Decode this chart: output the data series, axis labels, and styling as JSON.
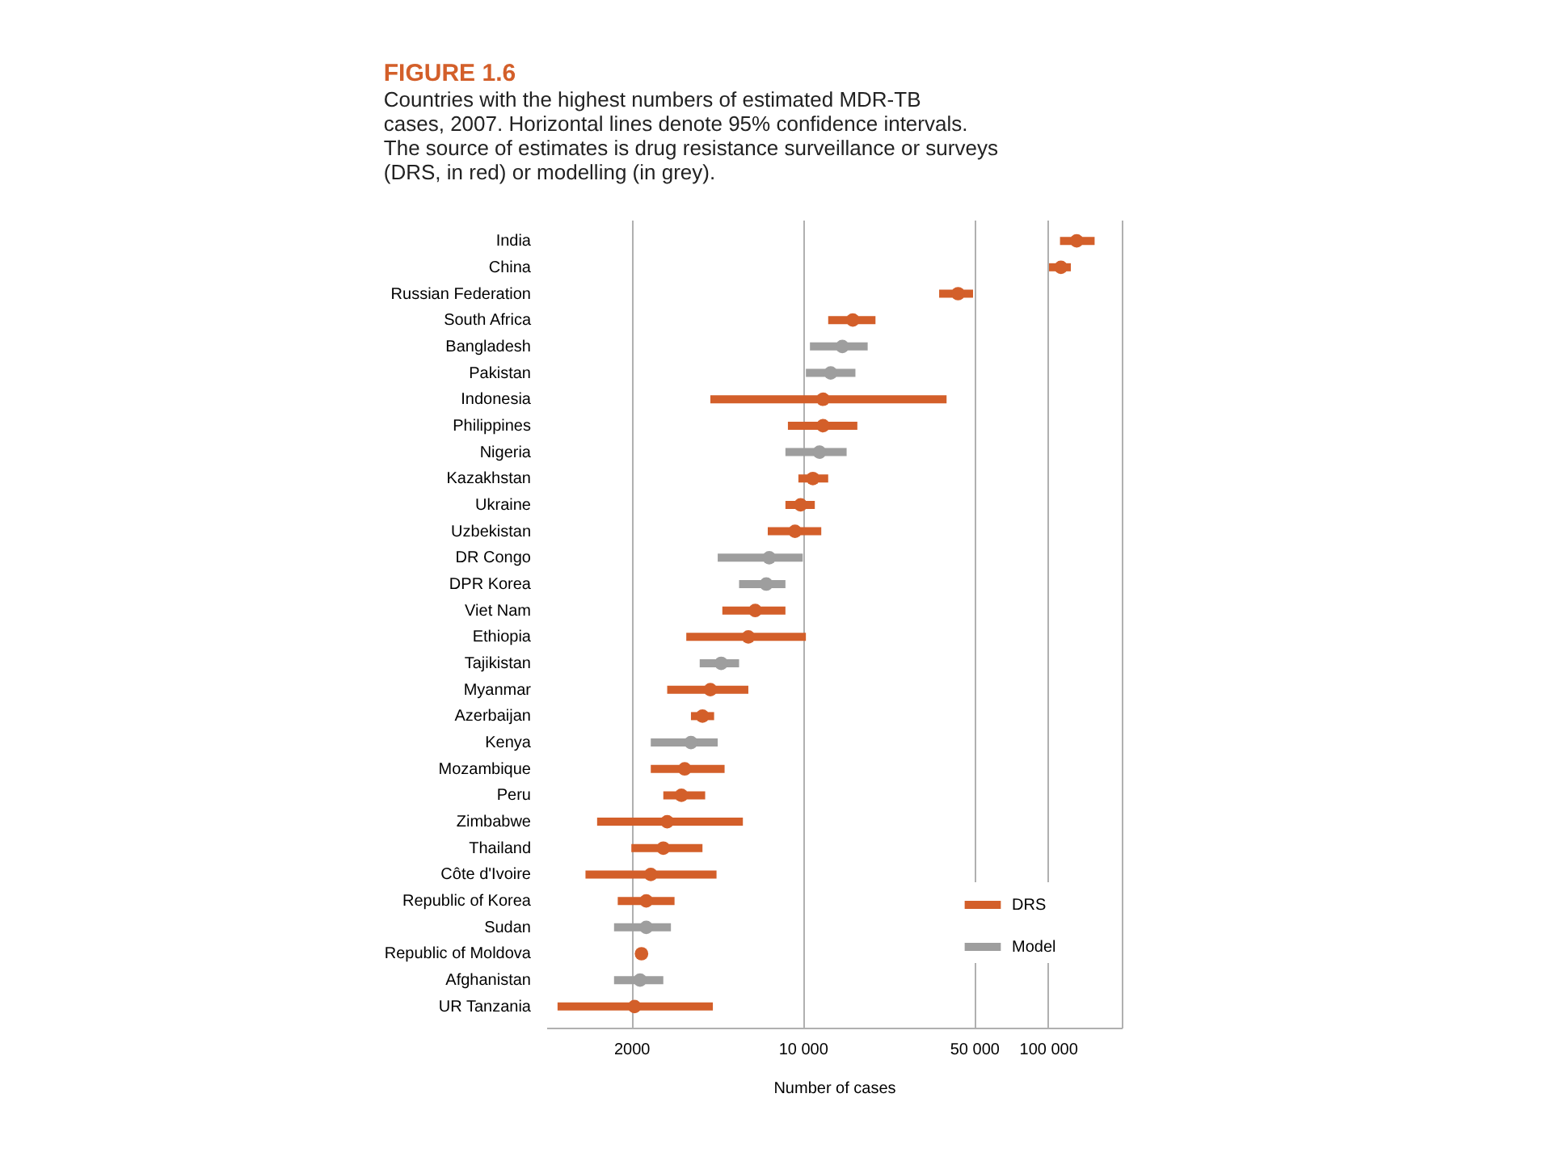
{
  "chart_data": {
    "type": "scatter",
    "title": "FIGURE 1.6",
    "subtitle": "Countries with the highest numbers of estimated MDR-TB\ncases, 2007. Horizontal lines denote 95% confidence intervals.\nThe source of estimates is drug resistance surveillance or surveys\n(DRS, in red) or modelling (in grey).",
    "xlabel": "Number of cases",
    "categories": [
      "India",
      "China",
      "Russian Federation",
      "South Africa",
      "Bangladesh",
      "Pakistan",
      "Indonesia",
      "Philippines",
      "Nigeria",
      "Kazakhstan",
      "Ukraine",
      "Uzbekistan",
      "DR Congo",
      "DPR Korea",
      "Viet Nam",
      "Ethiopia",
      "Tajikistan",
      "Myanmar",
      "Azerbaijan",
      "Kenya",
      "Mozambique",
      "Peru",
      "Zimbabwe",
      "Thailand",
      "Côte d'Ivoire",
      "Republic of Korea",
      "Sudan",
      "Republic of Moldova",
      "Afghanistan",
      "UR Tanzania"
    ],
    "series": [
      {
        "name": "DRS",
        "color": "#d35f2a",
        "values": [
          131000,
          113000,
          43000,
          16000,
          null,
          null,
          12100,
          12100,
          null,
          11000,
          9800,
          9300,
          null,
          null,
          6400,
          6000,
          null,
          4200,
          3900,
          null,
          3300,
          3200,
          2800,
          2700,
          2400,
          2300,
          null,
          2200,
          null,
          2060
        ],
        "errors": [
          [
            112000,
            155000
          ],
          [
            101000,
            124000
          ],
          [
            36000,
            49500
          ],
          [
            12700,
            19800
          ],
          null,
          null,
          [
            4200,
            38600
          ],
          [
            8700,
            16700
          ],
          null,
          [
            9600,
            12700
          ],
          [
            8500,
            11200
          ],
          [
            7200,
            11900
          ],
          null,
          null,
          [
            4700,
            8500
          ],
          [
            3350,
            10300
          ],
          null,
          [
            2800,
            6000
          ],
          [
            3500,
            4350
          ],
          null,
          [
            2400,
            4800
          ],
          [
            2700,
            4000
          ],
          [
            1450,
            5700
          ],
          [
            2000,
            3900
          ],
          [
            1300,
            4450
          ],
          [
            1760,
            3000
          ],
          null,
          [
            2130,
            2300
          ],
          null,
          [
            1000,
            4300
          ]
        ]
      },
      {
        "name": "Model",
        "color": "#9e9e9e",
        "values": [
          null,
          null,
          null,
          null,
          14500,
          13000,
          null,
          null,
          11700,
          null,
          null,
          null,
          7300,
          7100,
          null,
          null,
          4650,
          null,
          null,
          3500,
          null,
          null,
          null,
          null,
          null,
          null,
          2300,
          null,
          2170,
          null
        ],
        "errors": [
          null,
          null,
          null,
          null,
          [
            10700,
            18400
          ],
          [
            10300,
            16400
          ],
          null,
          null,
          [
            8500,
            15100
          ],
          null,
          null,
          null,
          [
            4500,
            10000
          ],
          [
            5500,
            8500
          ],
          null,
          null,
          [
            3800,
            5500
          ],
          null,
          null,
          [
            2400,
            4500
          ],
          null,
          null,
          null,
          null,
          null,
          null,
          [
            1700,
            2900
          ],
          null,
          [
            1700,
            2700
          ],
          null
        ]
      }
    ],
    "log": "x",
    "xlim": [
      900,
      200000
    ],
    "orientation": "horizontal",
    "xticks": [
      {
        "value": 2000,
        "label": "2000"
      },
      {
        "value": 10000,
        "label": "10 000"
      },
      {
        "value": 50000,
        "label": "50 000"
      },
      {
        "value": 100000,
        "label": "100 000"
      },
      {
        "value": 200000,
        "label": null
      }
    ],
    "grid": "x",
    "legend": "bottom right",
    "marker": "circle"
  }
}
